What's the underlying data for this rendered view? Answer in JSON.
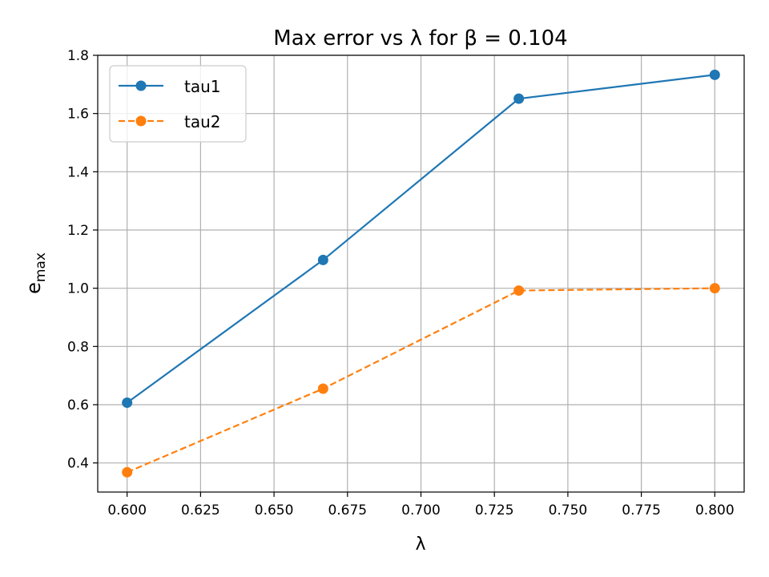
{
  "chart_data": {
    "type": "line",
    "title": "Max error vs λ for β = 0.104",
    "xlabel": "λ",
    "ylabel": "e",
    "ylabel_subscript": "max",
    "xlim": [
      0.59,
      0.81
    ],
    "ylim": [
      0.3,
      1.8
    ],
    "xticks": [
      0.6,
      0.625,
      0.65,
      0.675,
      0.7,
      0.725,
      0.75,
      0.775,
      0.8
    ],
    "xtick_labels": [
      "0.600",
      "0.625",
      "0.650",
      "0.675",
      "0.700",
      "0.725",
      "0.750",
      "0.775",
      "0.800"
    ],
    "yticks": [
      0.4,
      0.6,
      0.8,
      1.0,
      1.2,
      1.4,
      1.6,
      1.8
    ],
    "ytick_labels": [
      "0.4",
      "0.6",
      "0.8",
      "1.0",
      "1.2",
      "1.4",
      "1.6",
      "1.8"
    ],
    "grid": true,
    "legend_position": "top-left",
    "x": [
      0.6,
      0.6667,
      0.7333,
      0.8
    ],
    "series": [
      {
        "name": "tau1",
        "values": [
          0.607,
          1.097,
          1.651,
          1.733
        ],
        "color": "#1f77b4",
        "linestyle": "solid",
        "marker": "circle"
      },
      {
        "name": "tau2",
        "values": [
          0.368,
          0.655,
          0.992,
          1.0
        ],
        "color": "#ff7f0e",
        "linestyle": "dashed",
        "marker": "circle"
      }
    ]
  }
}
